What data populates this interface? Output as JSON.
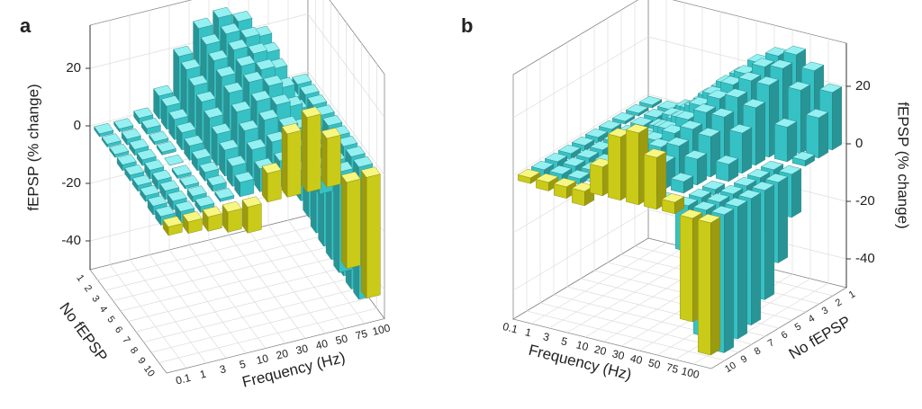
{
  "chart_data": [
    {
      "type": "bar3d",
      "panel_label": "a",
      "xlabel": "Frequency (Hz)",
      "ylabel": "No fEPSP",
      "zlabel": "fEPSP (% change)",
      "categories": [
        "0.1",
        "1",
        "3",
        "5",
        "10",
        "20",
        "30",
        "40",
        "50",
        "75",
        "100"
      ],
      "zlim": [
        -50,
        35
      ],
      "zticks": [
        -40,
        -20,
        0,
        20
      ],
      "grid": true,
      "rows": [
        {
          "label": "1",
          "color": "#3fe3e6",
          "values": [
            -1,
            -1,
            2,
            8,
            20,
            28,
            30,
            27,
            20,
            -18,
            -30
          ]
        },
        {
          "label": "2",
          "color": "#3fe3e6",
          "values": [
            -1,
            -2,
            2,
            8,
            19,
            26,
            28,
            25,
            18,
            -22,
            -34
          ]
        },
        {
          "label": "3",
          "color": "#3fe3e6",
          "values": [
            -1,
            -2,
            1,
            7,
            17,
            24,
            26,
            23,
            16,
            -25,
            -38
          ]
        },
        {
          "label": "4",
          "color": "#3fe3e6",
          "values": [
            -2,
            -2,
            1,
            6,
            15,
            22,
            24,
            21,
            13,
            -28,
            -40
          ]
        },
        {
          "label": "5",
          "color": "#3fe3e6",
          "values": [
            -2,
            -3,
            0,
            5,
            13,
            20,
            22,
            19,
            10,
            -30,
            -42
          ]
        },
        {
          "label": "6",
          "color": "#3fe3e6",
          "values": [
            -2,
            -3,
            -1,
            4,
            11,
            17,
            19,
            16,
            6,
            -32,
            -44
          ]
        },
        {
          "label": "7",
          "color": "#3fe3e6",
          "values": [
            -2,
            -3,
            -1,
            3,
            9,
            14,
            16,
            12,
            2,
            -33,
            -45
          ]
        },
        {
          "label": "8",
          "color": "#3fe3e6",
          "values": [
            -3,
            -3,
            -2,
            2,
            7,
            11,
            12,
            8,
            -2,
            -34,
            -46
          ]
        },
        {
          "label": "9",
          "color": "#3fe3e6",
          "values": [
            -3,
            -4,
            -2,
            1,
            5,
            8,
            9,
            4,
            -6,
            -35,
            -46
          ]
        },
        {
          "label": "10",
          "color": "#eeee1c",
          "values": [
            -3,
            -4,
            -5,
            -7,
            -9,
            10,
            22,
            26,
            17,
            -30,
            -42
          ]
        }
      ]
    },
    {
      "type": "bar3d",
      "panel_label": "b",
      "xlabel": "Frequency (Hz)",
      "ylabel": "No fEPSP",
      "zlabel": "fEPSP (% change)",
      "categories": [
        "0.1",
        "1",
        "3",
        "5",
        "10",
        "20",
        "30",
        "40",
        "50",
        "75",
        "100"
      ],
      "zlim": [
        -50,
        35
      ],
      "zticks": [
        -40,
        -20,
        0,
        20
      ],
      "grid": true,
      "rows": [
        {
          "label": "1",
          "color": "#3fe3e6",
          "values": [
            -1,
            -1,
            2,
            6,
            12,
            18,
            24,
            28,
            30,
            26,
            20
          ]
        },
        {
          "label": "2",
          "color": "#3fe3e6",
          "values": [
            -1,
            -2,
            2,
            6,
            12,
            18,
            23,
            27,
            28,
            22,
            14
          ]
        },
        {
          "label": "3",
          "color": "#3fe3e6",
          "values": [
            -1,
            -2,
            1,
            5,
            11,
            17,
            22,
            25,
            25,
            12,
            2
          ]
        },
        {
          "label": "4",
          "color": "#3fe3e6",
          "values": [
            -2,
            -2,
            1,
            5,
            10,
            16,
            20,
            22,
            20,
            -5,
            -15
          ]
        },
        {
          "label": "5",
          "color": "#3fe3e6",
          "values": [
            -2,
            -2,
            0,
            4,
            9,
            14,
            18,
            18,
            14,
            -20,
            -28
          ]
        },
        {
          "label": "6",
          "color": "#3fe3e6",
          "values": [
            -2,
            -3,
            0,
            3,
            8,
            12,
            15,
            14,
            6,
            -30,
            -38
          ]
        },
        {
          "label": "7",
          "color": "#3fe3e6",
          "values": [
            -2,
            -3,
            -1,
            2,
            6,
            10,
            12,
            9,
            -2,
            -38,
            -44
          ]
        },
        {
          "label": "8",
          "color": "#3fe3e6",
          "values": [
            -3,
            -3,
            -1,
            1,
            4,
            8,
            9,
            4,
            -10,
            -42,
            -46
          ]
        },
        {
          "label": "9",
          "color": "#3fe3e6",
          "values": [
            -3,
            -3,
            -2,
            0,
            3,
            6,
            5,
            -2,
            -16,
            -44,
            -48
          ]
        },
        {
          "label": "10",
          "color": "#eeee1c",
          "values": [
            -2,
            -3,
            -4,
            -5,
            10,
            22,
            25,
            18,
            4,
            -36,
            -46
          ]
        }
      ]
    }
  ]
}
